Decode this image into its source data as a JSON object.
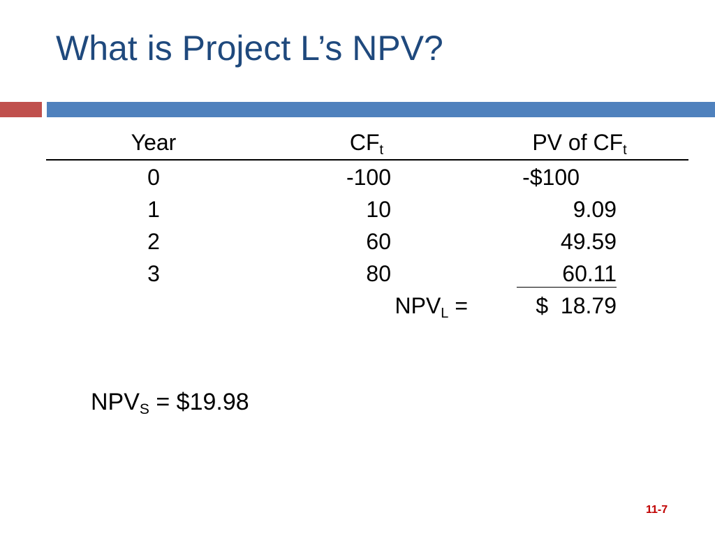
{
  "title": "What is Project L’s NPV?",
  "accent_colors": {
    "title": "#1f497d",
    "bar_left": "#c0504d",
    "bar_right": "#4f81bd",
    "slide_number": "#c00000"
  },
  "table": {
    "headers": {
      "year": "Year",
      "cf": "CF",
      "cf_sub": "t",
      "pv": "PV of CF",
      "pv_sub": "t"
    },
    "rows": [
      {
        "year": "0",
        "cf": "-100",
        "pv": "-$100"
      },
      {
        "year": "1",
        "cf": "10",
        "pv": "9.09"
      },
      {
        "year": "2",
        "cf": "60",
        "pv": "49.59"
      },
      {
        "year": "3",
        "cf": "80",
        "pv": "60.11"
      }
    ],
    "total": {
      "label": "NPV",
      "label_sub": "L",
      "equals": " =",
      "value": "$  18.79"
    }
  },
  "npv_s": {
    "label": "NPV",
    "label_sub": "S",
    "value": " = $19.98"
  },
  "slide_number": "11-7"
}
